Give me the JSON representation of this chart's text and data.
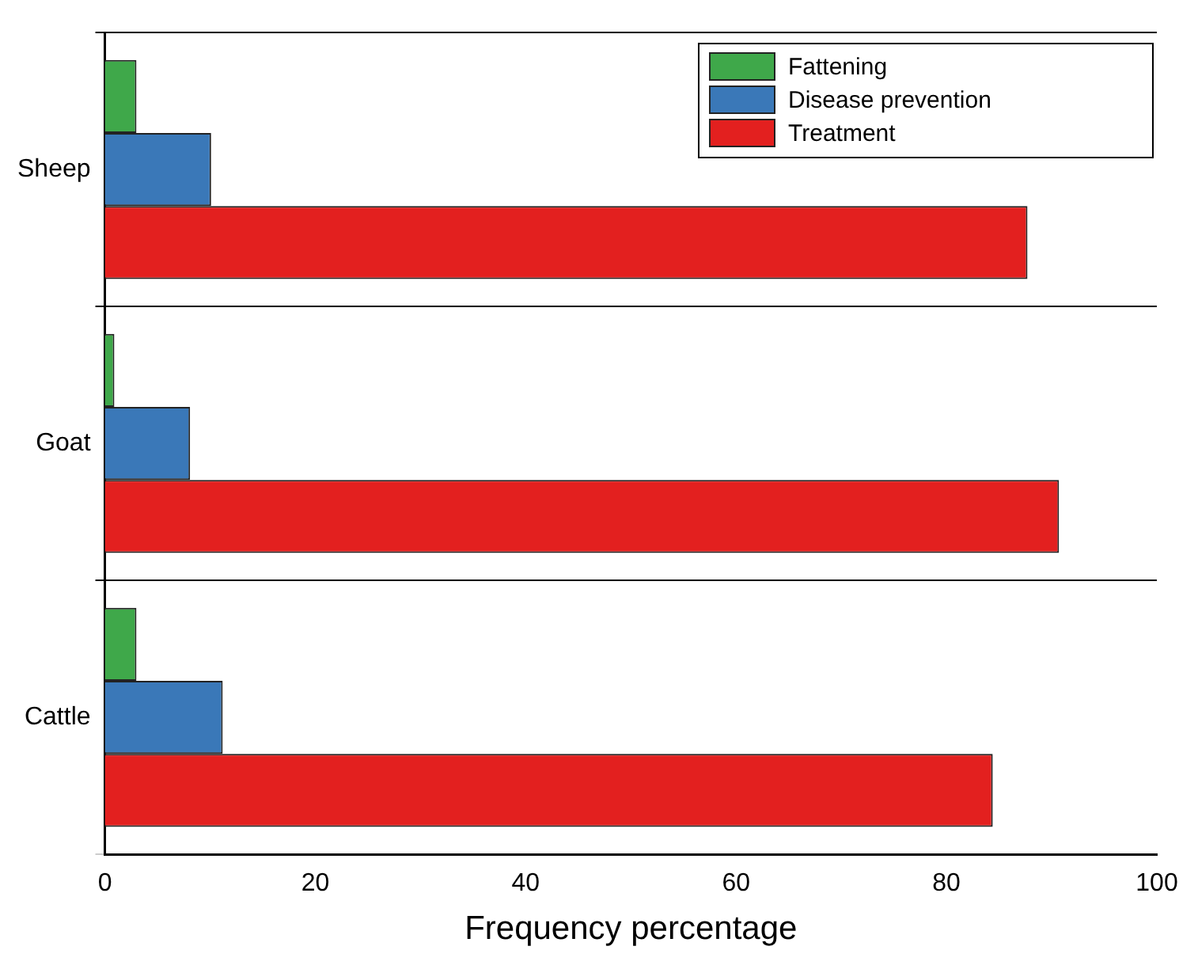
{
  "chart_data": {
    "type": "bar",
    "orientation": "horizontal",
    "xlabel": "Frequency percentage",
    "categories": [
      "Sheep",
      "Goat",
      "Cattle"
    ],
    "series": [
      {
        "name": "Fattening",
        "color": "#3fa84a",
        "values": [
          3.0,
          0.9,
          3.0
        ]
      },
      {
        "name": "Disease prevention",
        "color": "#3a78b8",
        "values": [
          10.1,
          8.1,
          11.2
        ]
      },
      {
        "name": "Treatment",
        "color": "#e3201f",
        "values": [
          87.7,
          90.7,
          84.4
        ]
      }
    ],
    "xlim": [
      0,
      100
    ],
    "xticks": [
      0,
      20,
      40,
      60,
      80,
      100
    ],
    "grid": "y",
    "legend": "top right"
  }
}
